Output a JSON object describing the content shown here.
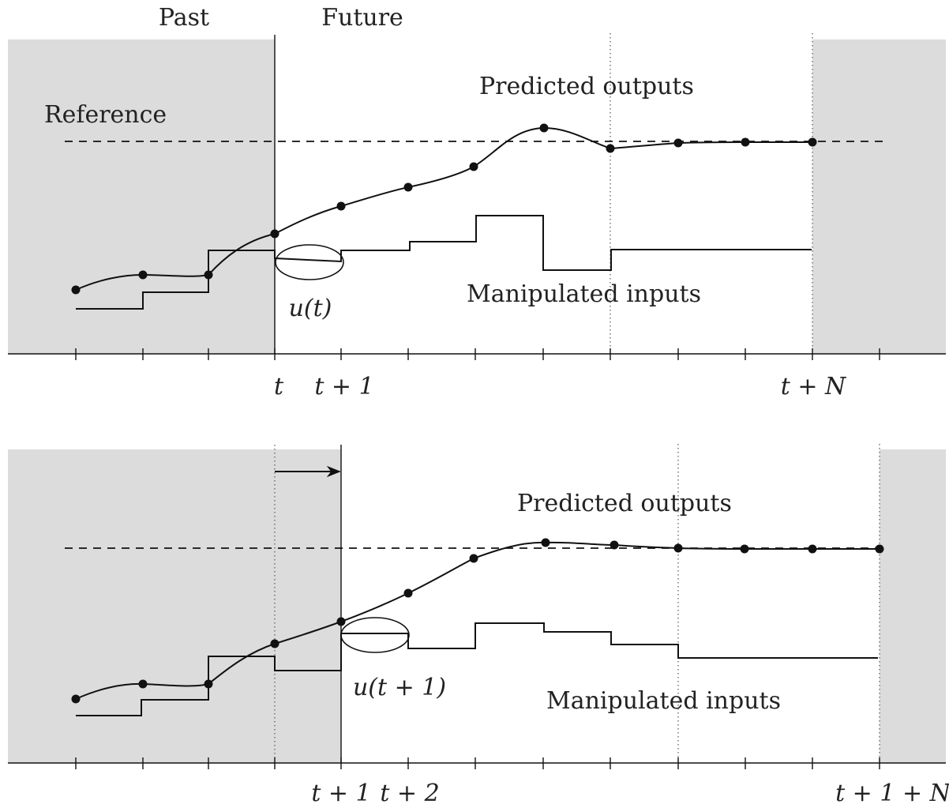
{
  "top_panel": {
    "past_label": "Past",
    "future_label": "Future",
    "reference_label": "Reference",
    "predicted_label": "Predicted outputs",
    "inputs_label": "Manipulated inputs",
    "control_label": "u(t)",
    "tick_labels": [
      "t",
      "t + 1",
      "t + N"
    ]
  },
  "bottom_panel": {
    "predicted_label": "Predicted outputs",
    "inputs_label": "Manipulated inputs",
    "control_label": "u(t + 1)",
    "tick_labels": [
      "t + 1",
      "t + 2",
      "t + 1 + N"
    ]
  }
}
